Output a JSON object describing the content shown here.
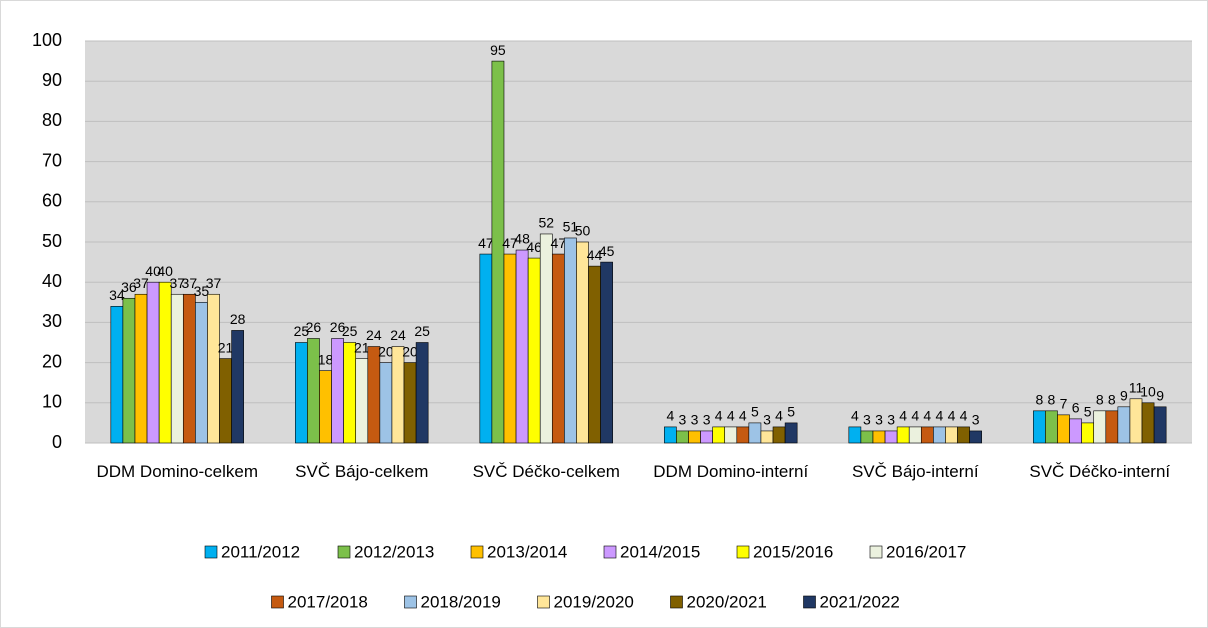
{
  "chart_data": {
    "type": "bar",
    "categories": [
      "DDM Domino-celkem",
      "SVČ Bájo-celkem",
      "SVČ Déčko-celkem",
      "DDM Domino-interní",
      "SVČ Bájo-interní",
      "SVČ Déčko-interní"
    ],
    "series": [
      {
        "name": "2011/2012",
        "color": "#00b0f0",
        "values": [
          34,
          25,
          47,
          4,
          4,
          8
        ]
      },
      {
        "name": "2012/2013",
        "color": "#7cc04a",
        "values": [
          36,
          26,
          95,
          3,
          3,
          8
        ]
      },
      {
        "name": "2013/2014",
        "color": "#ffc000",
        "values": [
          37,
          18,
          47,
          3,
          3,
          7
        ]
      },
      {
        "name": "2014/2015",
        "color": "#cc99ff",
        "values": [
          40,
          26,
          48,
          3,
          3,
          6
        ]
      },
      {
        "name": "2015/2016",
        "color": "#ffff00",
        "values": [
          40,
          25,
          46,
          4,
          4,
          5
        ]
      },
      {
        "name": "2016/2017",
        "color": "#ebf1de",
        "values": [
          37,
          21,
          52,
          4,
          4,
          8
        ]
      },
      {
        "name": "2017/2018",
        "color": "#c55a11",
        "values": [
          37,
          24,
          47,
          4,
          4,
          8
        ]
      },
      {
        "name": "2018/2019",
        "color": "#9dc3e6",
        "values": [
          35,
          20,
          51,
          5,
          4,
          9
        ]
      },
      {
        "name": "2019/2020",
        "color": "#ffe699",
        "values": [
          37,
          24,
          50,
          3,
          4,
          11
        ]
      },
      {
        "name": "2020/2021",
        "color": "#806000",
        "values": [
          21,
          20,
          44,
          4,
          4,
          10
        ]
      },
      {
        "name": "2021/2022",
        "color": "#203864",
        "values": [
          28,
          25,
          45,
          5,
          3,
          9
        ]
      }
    ],
    "ylim": [
      0,
      100
    ],
    "yticks": [
      0,
      10,
      20,
      30,
      40,
      50,
      60,
      70,
      80,
      90,
      100
    ],
    "grid": true
  }
}
